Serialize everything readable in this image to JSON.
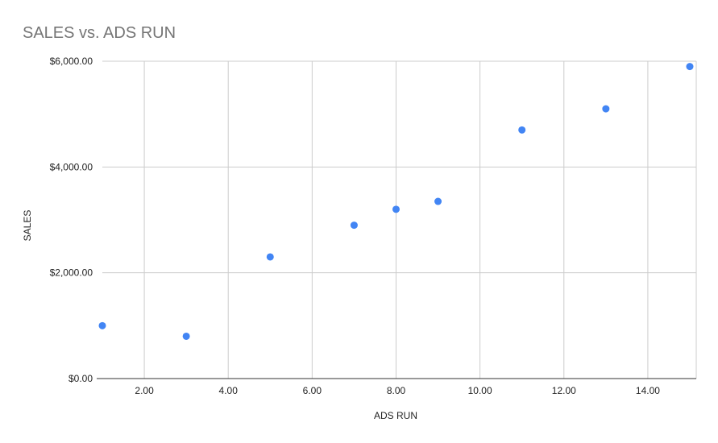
{
  "chart_data": {
    "type": "scatter",
    "title": "SALES vs. ADS RUN",
    "xlabel": "ADS RUN",
    "ylabel": "SALES",
    "xlim": [
      1,
      15
    ],
    "ylim": [
      0,
      6000
    ],
    "x_ticks": [
      2,
      4,
      6,
      8,
      10,
      12,
      14
    ],
    "x_tick_labels": [
      "2.00",
      "4.00",
      "6.00",
      "8.00",
      "10.00",
      "12.00",
      "14.00"
    ],
    "y_ticks": [
      0,
      2000,
      4000,
      6000
    ],
    "y_tick_labels": [
      "$0.00",
      "$2,000.00",
      "$4,000.00",
      "$6,000.00"
    ],
    "grid": true,
    "legend": "none",
    "series": [
      {
        "color": "#4285f4",
        "points": [
          {
            "x": 1,
            "y": 1000
          },
          {
            "x": 3,
            "y": 800
          },
          {
            "x": 5,
            "y": 2300
          },
          {
            "x": 7,
            "y": 2900
          },
          {
            "x": 8,
            "y": 3200
          },
          {
            "x": 9,
            "y": 3350
          },
          {
            "x": 11,
            "y": 4700
          },
          {
            "x": 13,
            "y": 5100
          },
          {
            "x": 15,
            "y": 5900
          }
        ]
      }
    ]
  }
}
